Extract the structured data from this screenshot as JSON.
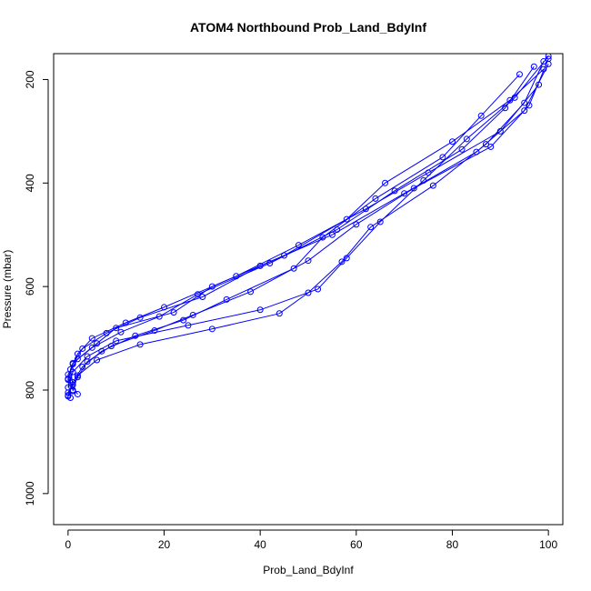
{
  "chart_data": {
    "type": "scatter",
    "title": "ATOM4 Northbound Prob_Land_BdyInf",
    "xlabel": "Prob_Land_BdyInf",
    "ylabel": "Pressure (mbar)",
    "xlim": [
      -3,
      103
    ],
    "ylim": [
      1060,
      150
    ],
    "y_reversed": true,
    "x_ticks": [
      0,
      20,
      40,
      60,
      80,
      100
    ],
    "y_ticks": [
      200,
      400,
      600,
      800,
      1000
    ],
    "x_tick_labels": [
      "0",
      "20",
      "40",
      "60",
      "80",
      "100"
    ],
    "y_tick_labels": [
      "200",
      "400",
      "600",
      "800",
      "1000"
    ],
    "marker": "open-circle",
    "connect_points": true,
    "grid": false,
    "series_color": "#0000ff",
    "series": [
      {
        "x": [
          0,
          1,
          0.5,
          2,
          5,
          12,
          20,
          35,
          48,
          62,
          75,
          90,
          98
        ],
        "y": [
          810,
          790,
          760,
          730,
          700,
          670,
          640,
          580,
          520,
          450,
          380,
          300,
          210
        ]
      },
      {
        "x": [
          0.5,
          0,
          1,
          3,
          8,
          15,
          28,
          40,
          55,
          70,
          85,
          95,
          100
        ],
        "y": [
          815,
          780,
          750,
          720,
          690,
          660,
          620,
          560,
          500,
          420,
          340,
          260,
          170
        ]
      },
      {
        "x": [
          1,
          0,
          2,
          6,
          10,
          22,
          30,
          45,
          58,
          66,
          80,
          92,
          99
        ],
        "y": [
          800,
          770,
          740,
          710,
          680,
          650,
          600,
          540,
          470,
          400,
          320,
          240,
          180
        ]
      },
      {
        "x": [
          0,
          2,
          4,
          9,
          18,
          26,
          38,
          50,
          60,
          72,
          88,
          96,
          100
        ],
        "y": [
          805,
          775,
          745,
          715,
          685,
          655,
          610,
          550,
          480,
          410,
          330,
          250,
          160
        ]
      },
      {
        "x": [
          0,
          1,
          3,
          7,
          14,
          24,
          33,
          47,
          53,
          64,
          78,
          86,
          94
        ],
        "y": [
          812,
          785,
          755,
          725,
          695,
          665,
          625,
          565,
          505,
          430,
          350,
          270,
          190
        ]
      },
      {
        "x": [
          2,
          0,
          1,
          5,
          11,
          19,
          27,
          42,
          56,
          68,
          82,
          91,
          97
        ],
        "y": [
          808,
          778,
          748,
          718,
          688,
          658,
          615,
          555,
          490,
          415,
          335,
          255,
          175
        ]
      },
      {
        "x": [
          0,
          1,
          4,
          10,
          25,
          40,
          52,
          58,
          65,
          74,
          83,
          93,
          100
        ],
        "y": [
          795,
          765,
          735,
          705,
          675,
          645,
          605,
          545,
          475,
          395,
          315,
          235,
          155
        ]
      },
      {
        "x": [
          1,
          2,
          6,
          15,
          30,
          44,
          50,
          57,
          63,
          76,
          87,
          95,
          99
        ],
        "y": [
          802,
          772,
          742,
          712,
          682,
          652,
          612,
          552,
          485,
          405,
          325,
          245,
          165
        ]
      }
    ]
  }
}
